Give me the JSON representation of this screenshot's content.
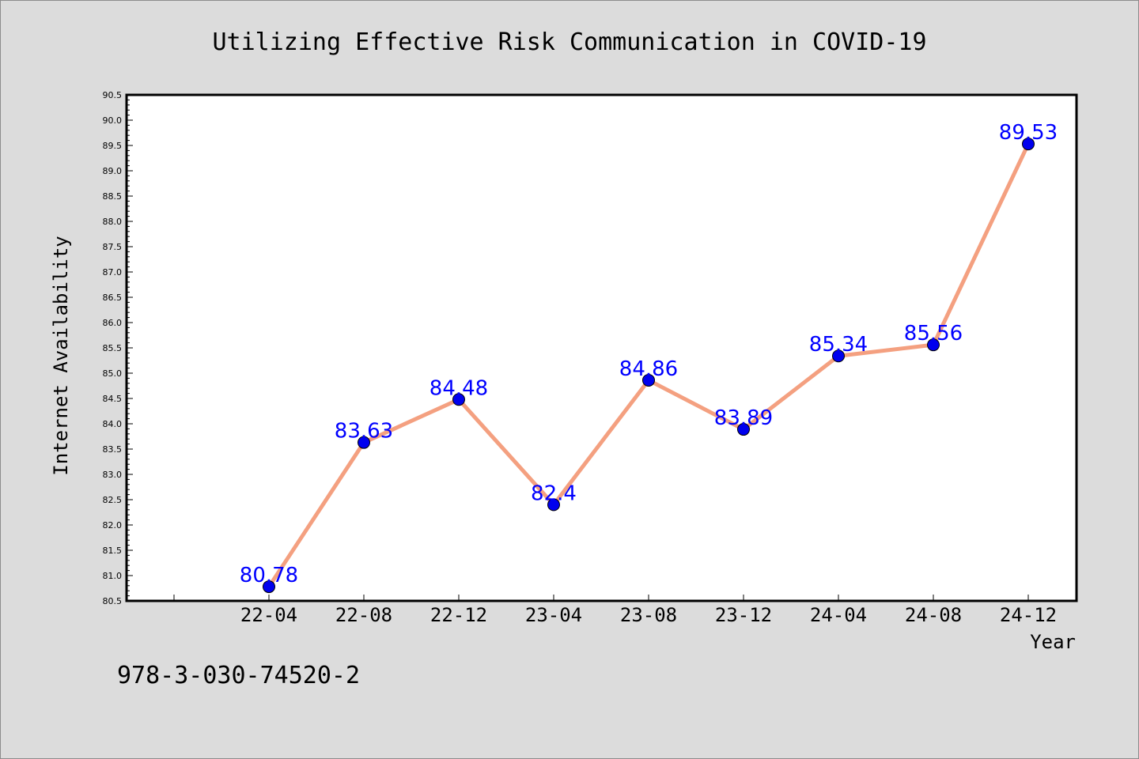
{
  "chart_data": {
    "type": "line",
    "title": "Utilizing Effective Risk Communication in COVID-19",
    "xlabel": "Year",
    "ylabel": "Internet Availability",
    "categories": [
      "22-04",
      "22-08",
      "22-12",
      "23-04",
      "23-08",
      "23-12",
      "24-04",
      "24-08",
      "24-12"
    ],
    "series": [
      {
        "values": [
          80.78,
          83.63,
          84.48,
          82.4,
          84.86,
          83.89,
          85.34,
          85.56,
          89.53
        ],
        "labels": [
          "80.78",
          "83.63",
          "84.48",
          "82.4",
          "84.86",
          "83.89",
          "85.34",
          "85.56",
          "89.53"
        ]
      }
    ],
    "ylim": [
      80.5,
      90.5
    ],
    "yticks": [
      "80.5",
      "81.0",
      "81.5",
      "82.0",
      "82.5",
      "83.0",
      "83.5",
      "84.0",
      "84.5",
      "85.0",
      "85.5",
      "86.0",
      "86.5",
      "87.0",
      "87.5",
      "88.0",
      "88.5",
      "89.0",
      "89.5",
      "90.0",
      "90.5"
    ],
    "grid": false,
    "legend": "none",
    "colors": {
      "line": "#f4a080",
      "marker": "#0000ee",
      "data_label": "#0000ff",
      "plot_background": "#ffffff",
      "page_background": "#dcdcdc"
    }
  },
  "footer": {
    "isbn": "978-3-030-74520-2"
  }
}
